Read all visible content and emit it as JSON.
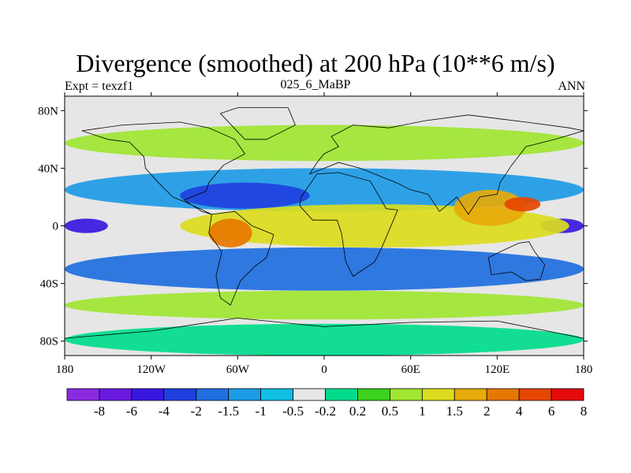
{
  "chart_data": {
    "type": "heatmap",
    "title": "Divergence (smoothed) at 200 hPa (10**6 m/s)",
    "subtitle_left": "Expt = texzf1",
    "subtitle_center": "025_6_MaBP",
    "subtitle_right": "ANN",
    "x_tick_labels": [
      "180",
      "120W",
      "60W",
      "0",
      "60E",
      "120E",
      "180"
    ],
    "x_tick_values": [
      -180,
      -120,
      -60,
      0,
      60,
      120,
      180
    ],
    "y_tick_labels": [
      "80N",
      "40N",
      "0",
      "40S",
      "80S"
    ],
    "y_tick_values": [
      80,
      40,
      0,
      -40,
      -80
    ],
    "xlim": [
      -180,
      180
    ],
    "ylim": [
      -90,
      90
    ],
    "colorbar": {
      "levels": [
        "-8",
        "-6",
        "-4",
        "-2",
        "-1.5",
        "-1",
        "-0.5",
        "-0.2",
        "0.2",
        "0.5",
        "1",
        "1.5",
        "2",
        "4",
        "6",
        "8"
      ],
      "colors": [
        "#8a2be2",
        "#6a1adf",
        "#3a17e0",
        "#1f40e0",
        "#1f6fe0",
        "#1e9be6",
        "#10bfe3",
        "#e6e6e6",
        "#00dc8c",
        "#3cd21e",
        "#a0e632",
        "#dcdc1e",
        "#e6aa0a",
        "#e67800",
        "#e64600",
        "#e60a0a"
      ]
    },
    "regions": [
      {
        "name": "northern high-latitude band",
        "lon": [
          -180,
          180
        ],
        "lat": [
          45,
          70
        ],
        "level": "1"
      },
      {
        "name": "mid-latitude convergence belt",
        "lon": [
          -180,
          180
        ],
        "lat": [
          10,
          40
        ],
        "level": "-1"
      },
      {
        "name": "north pacific convergence core",
        "lon": [
          -100,
          -10
        ],
        "lat": [
          12,
          30
        ],
        "level": "-2"
      },
      {
        "name": "east pacific convergence core",
        "lon": [
          150,
          180
        ],
        "lat": [
          -5,
          5
        ],
        "level": "-4"
      },
      {
        "name": "west pacific convergence core",
        "lon": [
          -180,
          -150
        ],
        "lat": [
          -5,
          5
        ],
        "level": "-4"
      },
      {
        "name": "equatorial divergence band",
        "lon": [
          -100,
          170
        ],
        "lat": [
          -15,
          15
        ],
        "level": "1.5"
      },
      {
        "name": "asian monsoon divergence",
        "lon": [
          90,
          140
        ],
        "lat": [
          0,
          25
        ],
        "level": "2"
      },
      {
        "name": "west pacific divergence core",
        "lon": [
          125,
          150
        ],
        "lat": [
          10,
          20
        ],
        "level": "6"
      },
      {
        "name": "south american divergence",
        "lon": [
          -80,
          -50
        ],
        "lat": [
          -15,
          5
        ],
        "level": "4"
      },
      {
        "name": "southern subtropical convergence",
        "lon": [
          -180,
          180
        ],
        "lat": [
          -45,
          -15
        ],
        "level": "-1.5"
      },
      {
        "name": "southern mid-latitude divergence",
        "lon": [
          -180,
          180
        ],
        "lat": [
          -65,
          -45
        ],
        "level": "1"
      },
      {
        "name": "antarctic band",
        "lon": [
          -180,
          180
        ],
        "lat": [
          -90,
          -68
        ],
        "level": "0.2"
      }
    ]
  }
}
